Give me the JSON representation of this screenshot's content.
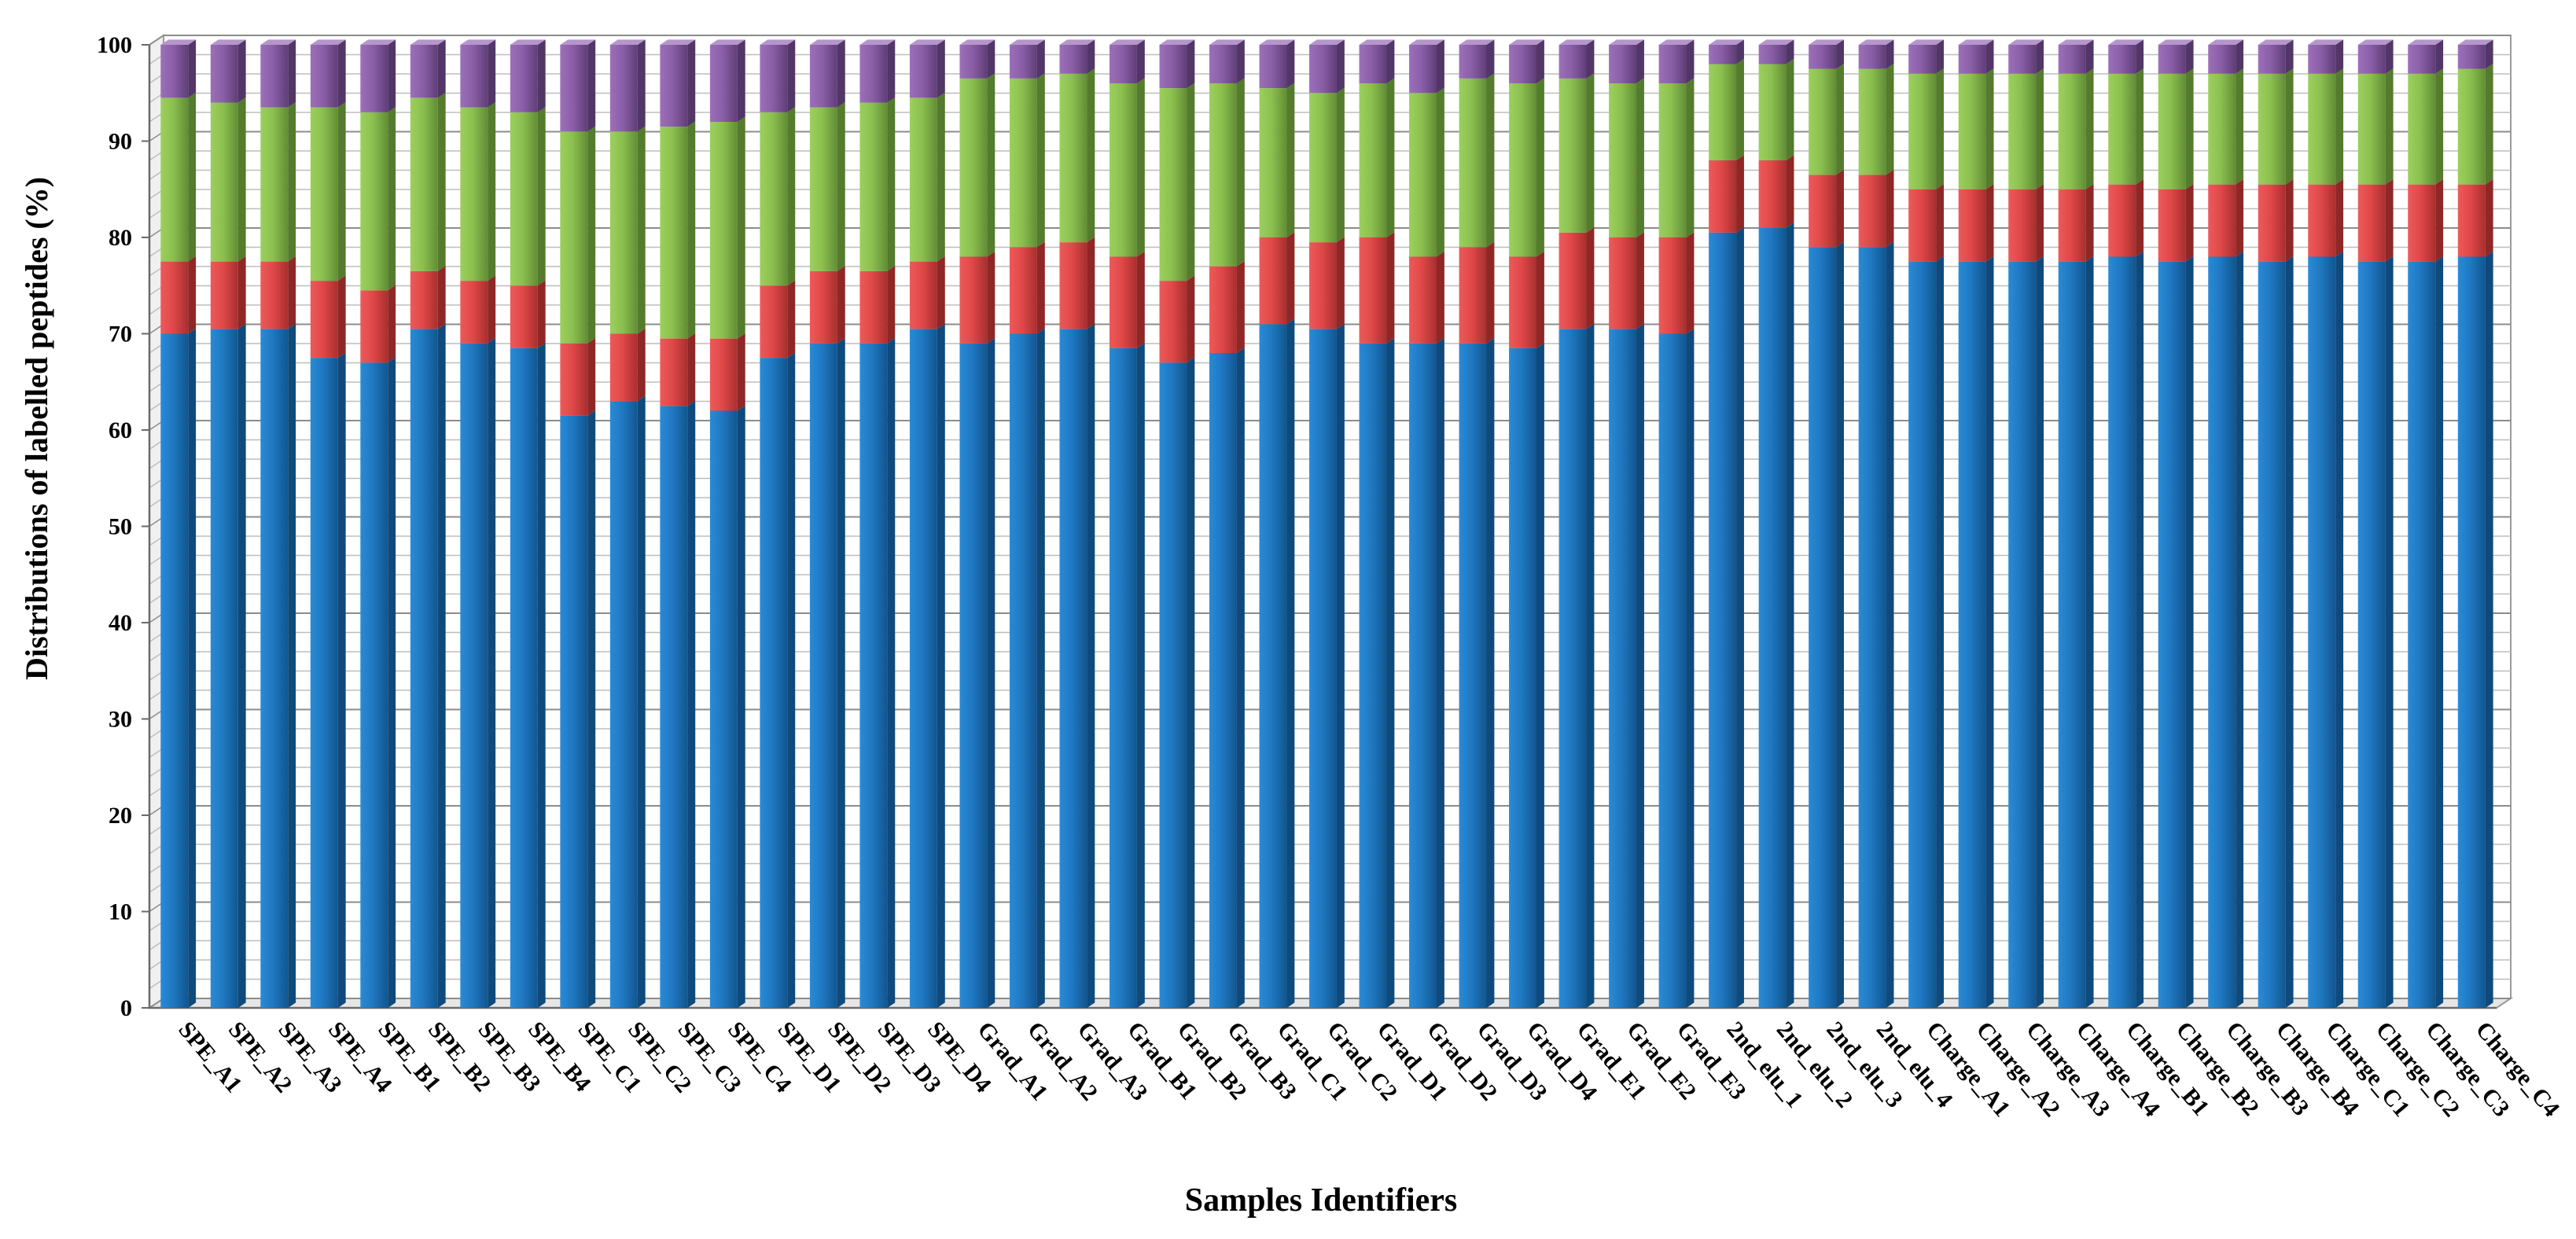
{
  "chart_data": {
    "type": "bar",
    "stacked": true,
    "title": "",
    "xlabel": "Samples Identifiers",
    "ylabel": "Distributions of labelled peptides (%)",
    "ylim": [
      0,
      100
    ],
    "yticks": [
      0,
      10,
      20,
      30,
      40,
      50,
      60,
      70,
      80,
      90,
      100
    ],
    "grid": true,
    "categories": [
      "SPE_A1",
      "SPE_A2",
      "SPE_A3",
      "SPE_A4",
      "SPE_B1",
      "SPE_B2",
      "SPE_B3",
      "SPE_B4",
      "SPE_C1",
      "SPE_C2",
      "SPE_C3",
      "SPE_C4",
      "SPE_D1",
      "SPE_D2",
      "SPE_D3",
      "SPE_D4",
      "Grad_A1",
      "Grad_A2",
      "Grad_A3",
      "Grad_B1",
      "Grad_B2",
      "Grad_B3",
      "Grad_C1",
      "Grad_C2",
      "Grad_D1",
      "Grad_D2",
      "Grad_D3",
      "Grad_D4",
      "Grad_E1",
      "Grad_E2",
      "Grad_E3",
      "2nd_elu_1",
      "2nd_elu_2",
      "2nd_elu_3",
      "2nd_elu_4",
      "Charge_A1",
      "Charge_A2",
      "Charge_A3",
      "Charge_A4",
      "Charge_B1",
      "Charge_B2",
      "Charge_B3",
      "Charge_B4",
      "Charge_C1",
      "Charge_C2",
      "Charge_C3",
      "Charge_C4"
    ],
    "series": [
      {
        "name": "Blue",
        "color": "#1f78c1",
        "values": [
          70,
          70.5,
          70.5,
          67.5,
          67,
          70.5,
          69,
          68.5,
          61.5,
          63,
          62.5,
          62,
          67.5,
          69,
          69,
          70.5,
          69,
          70,
          70.5,
          68.5,
          67,
          68,
          71,
          70.5,
          69,
          69,
          69,
          68.5,
          70.5,
          70.5,
          70,
          80.5,
          81,
          79,
          79,
          77.5,
          77.5,
          77.5,
          77.5,
          78,
          77.5,
          78,
          77.5,
          78,
          77.5,
          77.5,
          78
        ]
      },
      {
        "name": "Red",
        "color": "#e04848",
        "values": [
          7.5,
          7,
          7,
          8,
          7.5,
          6,
          6.5,
          6.5,
          7.5,
          7,
          7,
          7.5,
          7.5,
          7.5,
          7.5,
          7,
          9,
          9,
          9,
          9.5,
          8.5,
          9,
          9,
          9,
          11,
          9,
          10,
          9.5,
          10,
          9.5,
          10,
          7.5,
          7,
          7.5,
          7.5,
          7.5,
          7.5,
          7.5,
          7.5,
          7.5,
          7.5,
          7.5,
          8,
          7.5,
          8,
          8,
          7.5
        ]
      },
      {
        "name": "Green",
        "color": "#8bc04f",
        "values": [
          17,
          16.5,
          16,
          18,
          18.5,
          18,
          18,
          18,
          22,
          21,
          22,
          22.5,
          18,
          17,
          17.5,
          17,
          18.5,
          17.5,
          17.5,
          18,
          20,
          19,
          15.5,
          15.5,
          16,
          17,
          17.5,
          18,
          16,
          16,
          16,
          10,
          10,
          11,
          11,
          12,
          12,
          12,
          12,
          11.5,
          12,
          11.5,
          11.5,
          11.5,
          11.5,
          11.5,
          12
        ]
      },
      {
        "name": "Purple",
        "color": "#8b5fa8",
        "values": [
          5.5,
          6,
          6.5,
          6.5,
          7,
          5.5,
          6.5,
          7,
          9,
          9,
          8.5,
          8,
          7,
          6.5,
          6,
          5.5,
          3.5,
          3.5,
          3,
          4,
          4.5,
          4,
          4.5,
          5,
          4,
          5,
          3.5,
          4,
          3.5,
          4,
          4,
          2,
          2,
          2.5,
          2.5,
          3,
          3,
          3,
          3,
          3,
          3,
          3,
          3,
          3,
          3,
          3,
          2.5
        ]
      }
    ]
  }
}
